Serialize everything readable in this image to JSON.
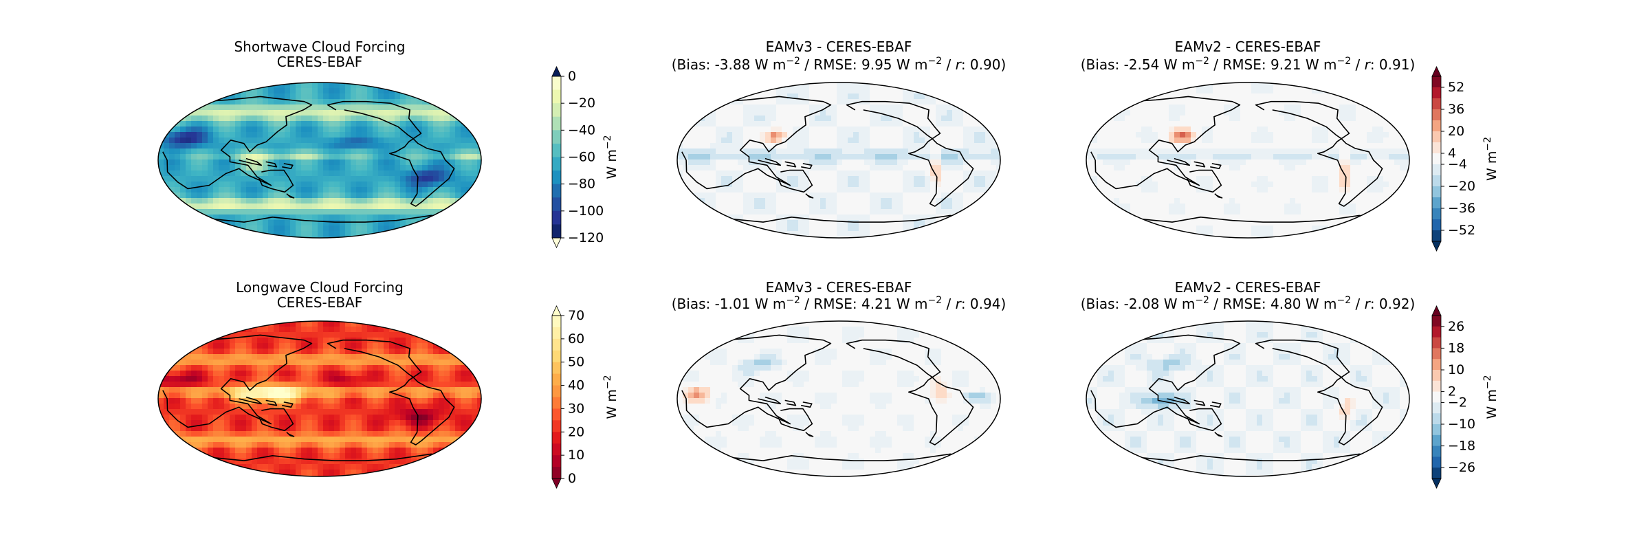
{
  "chart_data": [
    {
      "type": "heatmap",
      "id": "sw-obs",
      "title": [
        "Shortwave Cloud Forcing",
        "CERES-EBAF"
      ],
      "field": "sw_obs",
      "colormap": "YlGnBu",
      "colorbar": {
        "levels": [
          -120,
          -110,
          -100,
          -90,
          -80,
          -70,
          -60,
          -50,
          -40,
          -30,
          -20,
          -10,
          0
        ],
        "ticks": [
          0,
          -20,
          -40,
          -60,
          -80,
          -100,
          -120
        ],
        "label": "W m",
        "label_sup": "−2",
        "extend": "both"
      }
    },
    {
      "type": "heatmap",
      "id": "sw-v3",
      "title": [
        "EAMv3 - CERES-EBAF",
        "(Bias:  -3.88 W m",
        "−2",
        " / RMSE: 9.95 W m",
        "−2",
        " / ",
        "r",
        ": 0.90)"
      ],
      "bias": -3.88,
      "rmse": 9.95,
      "r": 0.9,
      "field": "sw_diff_v3",
      "colormap": "RdBu_r"
    },
    {
      "type": "heatmap",
      "id": "sw-v2",
      "title": [
        "EAMv2 - CERES-EBAF",
        "(Bias: -2.54 W m",
        "−2",
        " / RMSE: 9.21 W m",
        "−2",
        " / ",
        "r",
        ": 0.91)"
      ],
      "bias": -2.54,
      "rmse": 9.21,
      "r": 0.91,
      "field": "sw_diff_v2",
      "colormap": "RdBu_r",
      "colorbar": {
        "levels": [
          -60,
          -52,
          -44,
          -36,
          -28,
          -20,
          -12,
          -4,
          4,
          12,
          20,
          28,
          36,
          44,
          52,
          60
        ],
        "ticks": [
          52,
          36,
          20,
          4,
          -4,
          -20,
          -36,
          -52
        ],
        "label": "W m",
        "label_sup": "−2",
        "extend": "both"
      }
    },
    {
      "type": "heatmap",
      "id": "lw-obs",
      "title": [
        "Longwave Cloud Forcing",
        "CERES-EBAF"
      ],
      "field": "lw_obs",
      "colormap": "YlOrRd_r",
      "colorbar": {
        "levels": [
          0,
          5,
          10,
          15,
          20,
          25,
          30,
          35,
          40,
          45,
          50,
          55,
          60,
          65,
          70
        ],
        "ticks": [
          70,
          60,
          50,
          40,
          30,
          20,
          10,
          0
        ],
        "label": "W m",
        "label_sup": "−2",
        "extend": "both"
      }
    },
    {
      "type": "heatmap",
      "id": "lw-v3",
      "title": [
        "EAMv3 - CERES-EBAF",
        "(Bias: -1.01 W m",
        "−2",
        " / RMSE: 4.21 W m",
        "−2",
        " / ",
        "r",
        ": 0.94)"
      ],
      "bias": -1.01,
      "rmse": 4.21,
      "r": 0.94,
      "field": "lw_diff_v3",
      "colormap": "RdBu_r"
    },
    {
      "type": "heatmap",
      "id": "lw-v2",
      "title": [
        "EAMv2 - CERES-EBAF",
        "(Bias: -2.08 W m",
        "−2",
        " / RMSE: 4.80 W m",
        "−2",
        " / ",
        "r",
        ": 0.92)"
      ],
      "bias": -2.08,
      "rmse": 4.8,
      "r": 0.92,
      "field": "lw_diff_v2",
      "colormap": "RdBu_r",
      "colorbar": {
        "levels": [
          -30,
          -26,
          -22,
          -18,
          -14,
          -10,
          -6,
          -2,
          2,
          6,
          10,
          14,
          18,
          22,
          26,
          30
        ],
        "ticks": [
          26,
          18,
          10,
          2,
          -2,
          -10,
          -18,
          -26
        ],
        "label": "W m",
        "label_sup": "−2",
        "extend": "both"
      }
    }
  ],
  "colors": {
    "YlGnBu": [
      "#ffffd9",
      "#edf8b1",
      "#c7e9b4",
      "#7fcdbb",
      "#41b6c4",
      "#1d91c0",
      "#225ea8",
      "#253494",
      "#081d58"
    ],
    "YlOrRd_r": [
      "#800026",
      "#bd0026",
      "#e31a1c",
      "#fc4e2a",
      "#fd8d3c",
      "#feb24c",
      "#fed976",
      "#ffeda0",
      "#ffffcc"
    ],
    "RdBu_r": [
      "#053061",
      "#2166ac",
      "#4393c3",
      "#92c5de",
      "#d1e5f0",
      "#f7f7f7",
      "#fddbc7",
      "#f4a582",
      "#d6604d",
      "#b2182b",
      "#67001f"
    ],
    "coast": "#000000"
  }
}
